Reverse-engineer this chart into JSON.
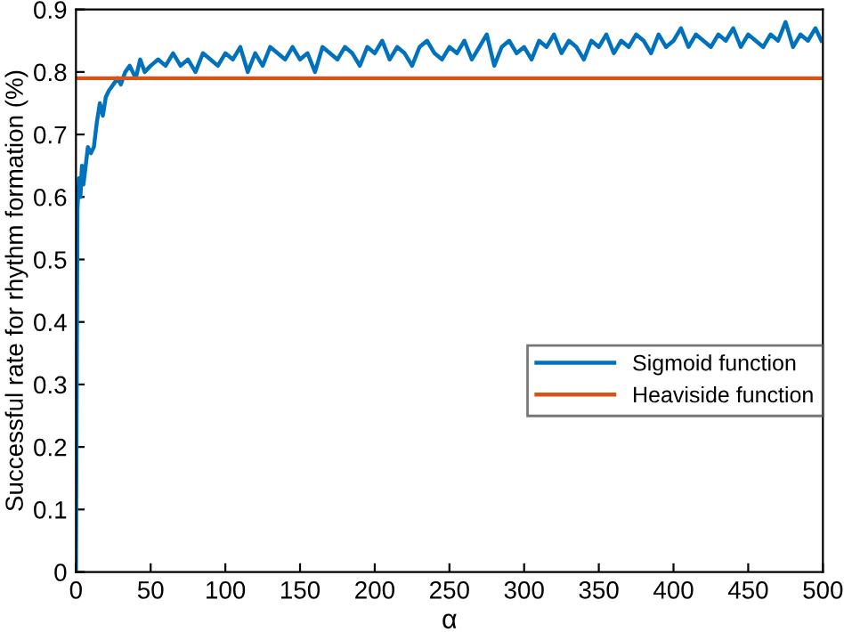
{
  "chart_data": {
    "type": "line",
    "xlabel": "α",
    "ylabel": "Successful rate for rhythm formation (%)",
    "xlim": [
      0,
      500
    ],
    "ylim": [
      0,
      0.9
    ],
    "xticks": [
      0,
      50,
      100,
      150,
      200,
      250,
      300,
      350,
      400,
      450,
      500
    ],
    "yticks": [
      0,
      0.1,
      0.2,
      0.3,
      0.4,
      0.5,
      0.6,
      0.7,
      0.8,
      0.9
    ],
    "legend": "right",
    "grid": false,
    "series": [
      {
        "name": "Sigmoid function",
        "color": "#0072bd",
        "x": [
          0,
          1,
          2,
          3,
          4,
          5,
          6,
          8,
          10,
          12,
          14,
          16,
          18,
          20,
          22,
          25,
          28,
          30,
          33,
          36,
          40,
          43,
          46,
          50,
          55,
          60,
          65,
          70,
          75,
          80,
          85,
          90,
          95,
          100,
          105,
          110,
          115,
          120,
          125,
          130,
          135,
          140,
          145,
          150,
          155,
          160,
          165,
          170,
          175,
          180,
          185,
          190,
          195,
          200,
          205,
          210,
          215,
          220,
          225,
          230,
          235,
          240,
          245,
          250,
          255,
          260,
          265,
          270,
          275,
          280,
          285,
          290,
          295,
          300,
          305,
          310,
          315,
          320,
          325,
          330,
          335,
          340,
          345,
          350,
          355,
          360,
          365,
          370,
          375,
          380,
          385,
          390,
          395,
          400,
          405,
          410,
          415,
          420,
          425,
          430,
          435,
          440,
          445,
          450,
          455,
          460,
          465,
          470,
          475,
          480,
          485,
          490,
          495,
          499
        ],
        "values": [
          0,
          0.58,
          0.63,
          0.6,
          0.65,
          0.62,
          0.64,
          0.68,
          0.67,
          0.68,
          0.72,
          0.75,
          0.73,
          0.76,
          0.77,
          0.78,
          0.79,
          0.78,
          0.8,
          0.81,
          0.79,
          0.82,
          0.8,
          0.81,
          0.82,
          0.81,
          0.83,
          0.81,
          0.82,
          0.8,
          0.83,
          0.82,
          0.81,
          0.83,
          0.82,
          0.84,
          0.8,
          0.83,
          0.81,
          0.84,
          0.83,
          0.82,
          0.84,
          0.82,
          0.83,
          0.8,
          0.84,
          0.83,
          0.82,
          0.84,
          0.83,
          0.81,
          0.84,
          0.83,
          0.85,
          0.82,
          0.84,
          0.83,
          0.81,
          0.84,
          0.85,
          0.83,
          0.82,
          0.84,
          0.83,
          0.85,
          0.82,
          0.84,
          0.86,
          0.81,
          0.84,
          0.85,
          0.83,
          0.84,
          0.82,
          0.85,
          0.84,
          0.86,
          0.83,
          0.85,
          0.84,
          0.82,
          0.85,
          0.84,
          0.86,
          0.83,
          0.85,
          0.84,
          0.86,
          0.85,
          0.83,
          0.86,
          0.84,
          0.85,
          0.87,
          0.84,
          0.86,
          0.85,
          0.84,
          0.86,
          0.85,
          0.87,
          0.84,
          0.86,
          0.85,
          0.84,
          0.86,
          0.85,
          0.88,
          0.84,
          0.86,
          0.85,
          0.87,
          0.85
        ]
      },
      {
        "name": "Heaviside function",
        "color": "#d95319",
        "x": [
          0,
          500
        ],
        "values": [
          0.79,
          0.79
        ]
      }
    ]
  }
}
